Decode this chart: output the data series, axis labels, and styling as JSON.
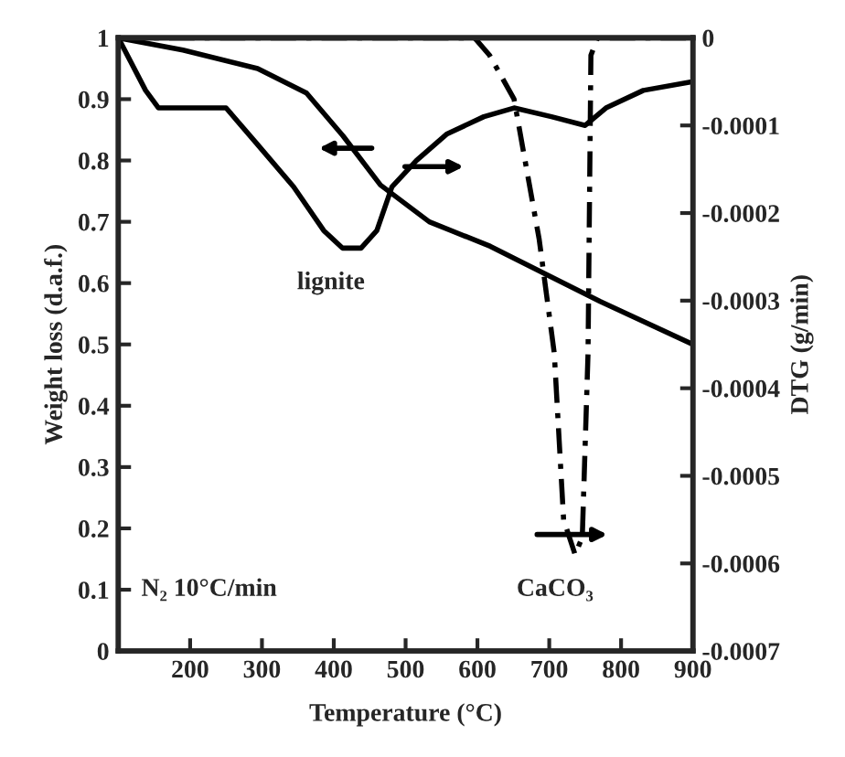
{
  "chart_data": {
    "type": "line",
    "xlabel": "Temperature (°C)",
    "ylabel": "Weight loss (d.a.f.)",
    "y2label": "DTG (g/min)",
    "xlim": [
      100,
      900
    ],
    "xticks": [
      200,
      300,
      400,
      500,
      600,
      700,
      800,
      900
    ],
    "ylim": [
      0,
      1
    ],
    "yticks": [
      0,
      0.1,
      0.2,
      0.3,
      0.4,
      0.5,
      0.6,
      0.7,
      0.8,
      0.9,
      1
    ],
    "y2lim": [
      -0.0007,
      0
    ],
    "y2ticks": [
      {
        "value": -0.0007,
        "label": "-0.0007"
      },
      {
        "value": -0.0006,
        "label": "-0.0006"
      },
      {
        "value": -0.0005,
        "label": "-0.0005"
      },
      {
        "value": -0.0004,
        "label": "-0.0004"
      },
      {
        "value": -0.0003,
        "label": "-0.0003"
      },
      {
        "value": -0.0002,
        "label": "-0.0002"
      },
      {
        "value": -0.0001,
        "label": "-0.0001"
      },
      0
    ],
    "grid": false,
    "legend": false,
    "marker": "none",
    "series": [
      {
        "color": "#000000",
        "line_style": "solid",
        "x": [
          100,
          190,
          294,
          362,
          413,
          465,
          533,
          618,
          703,
          771,
          900
        ],
        "values": [
          1.0,
          0.98,
          0.95,
          0.91,
          0.84,
          0.76,
          0.7,
          0.66,
          0.61,
          0.57,
          0.5
        ]
      },
      {
        "color": "#000000",
        "line_style": "solid",
        "axis": "y2",
        "x": [
          100,
          138,
          156,
          215,
          250,
          292,
          344,
          386,
          412,
          438,
          460,
          481,
          515,
          557,
          609,
          651,
          703,
          750,
          779,
          831,
          900
        ],
        "values": [
          0,
          -6e-05,
          -8e-05,
          -8e-05,
          -8e-05,
          -0.00012,
          -0.00017,
          -0.00022,
          -0.00024,
          -0.00024,
          -0.00022,
          -0.00017,
          -0.00014,
          -0.00011,
          -9e-05,
          -8e-05,
          -9e-05,
          -0.0001,
          -8e-05,
          -6e-05,
          -5e-05
        ]
      },
      {
        "color": "#000000",
        "line_style": "dashed",
        "axis": "y2",
        "x": [
          100,
          596,
          617,
          651,
          686,
          707,
          720,
          736,
          746,
          754,
          758,
          767,
          900
        ],
        "values": [
          0,
          0,
          -2e-05,
          -7e-05,
          -0.00023,
          -0.00036,
          -0.00055,
          -0.00059,
          -0.00057,
          -0.00036,
          -2e-05,
          0,
          0
        ]
      }
    ],
    "annotations": [
      "lignite",
      "CaCO₃",
      "N₂ 10°C/min"
    ]
  }
}
